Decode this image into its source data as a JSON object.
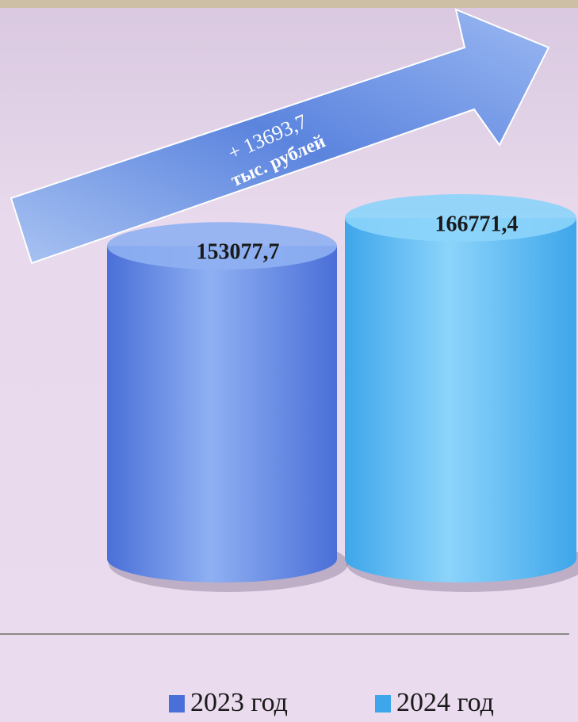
{
  "chart_data": {
    "type": "bar",
    "categories": [
      "2023 год",
      "2024 год"
    ],
    "values": [
      153077.7,
      166771.4
    ],
    "value_labels": [
      "153077,7",
      "166771,4"
    ],
    "colors": [
      "#4a6fd8",
      "#3ea6ea"
    ],
    "annotation": [
      "+ 13693,7",
      "тыс. рублей"
    ]
  }
}
